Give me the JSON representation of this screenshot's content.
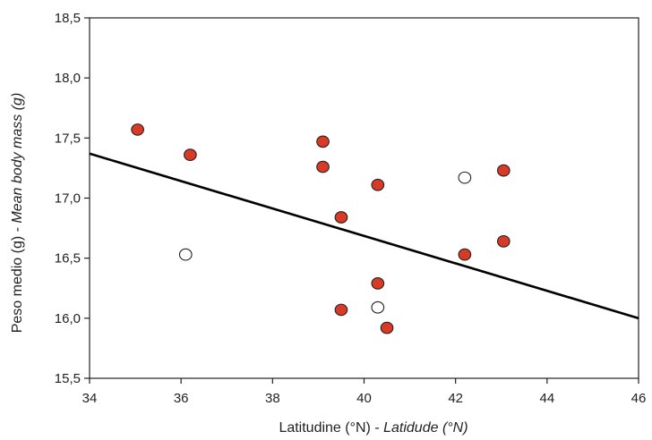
{
  "chart_data": {
    "type": "scatter",
    "xlabel": {
      "main": "Latitudine (°N) - ",
      "italic": "Latidude (°N)"
    },
    "ylabel": {
      "main": "Peso medio (g) - ",
      "italic": "Mean body mass (g)"
    },
    "xlim": [
      34,
      46
    ],
    "ylim": [
      15.5,
      18.5
    ],
    "x_ticks": [
      "34",
      "36",
      "38",
      "40",
      "42",
      "44",
      "46"
    ],
    "y_ticks": [
      "15,5",
      "16,0",
      "16,5",
      "17,0",
      "17,5",
      "18,0",
      "18,5"
    ],
    "grid": false,
    "series": [
      {
        "color": "#d93a25",
        "edge": "#222222",
        "points": [
          {
            "x": 35.05,
            "y": 17.57
          },
          {
            "x": 36.2,
            "y": 17.36
          },
          {
            "x": 39.1,
            "y": 17.47
          },
          {
            "x": 39.1,
            "y": 17.26
          },
          {
            "x": 40.3,
            "y": 17.11
          },
          {
            "x": 39.5,
            "y": 16.84
          },
          {
            "x": 43.05,
            "y": 17.23
          },
          {
            "x": 43.05,
            "y": 16.64
          },
          {
            "x": 42.2,
            "y": 16.53
          },
          {
            "x": 40.3,
            "y": 16.29
          },
          {
            "x": 39.5,
            "y": 16.07
          },
          {
            "x": 40.5,
            "y": 15.92
          }
        ]
      },
      {
        "color": "#ffffff",
        "edge": "#222222",
        "points": [
          {
            "x": 36.1,
            "y": 16.53
          },
          {
            "x": 42.2,
            "y": 17.17
          },
          {
            "x": 40.3,
            "y": 16.09
          }
        ]
      }
    ],
    "regression_line": {
      "x": [
        34,
        46
      ],
      "y": [
        17.37,
        16.0
      ],
      "color": "#000000"
    }
  }
}
